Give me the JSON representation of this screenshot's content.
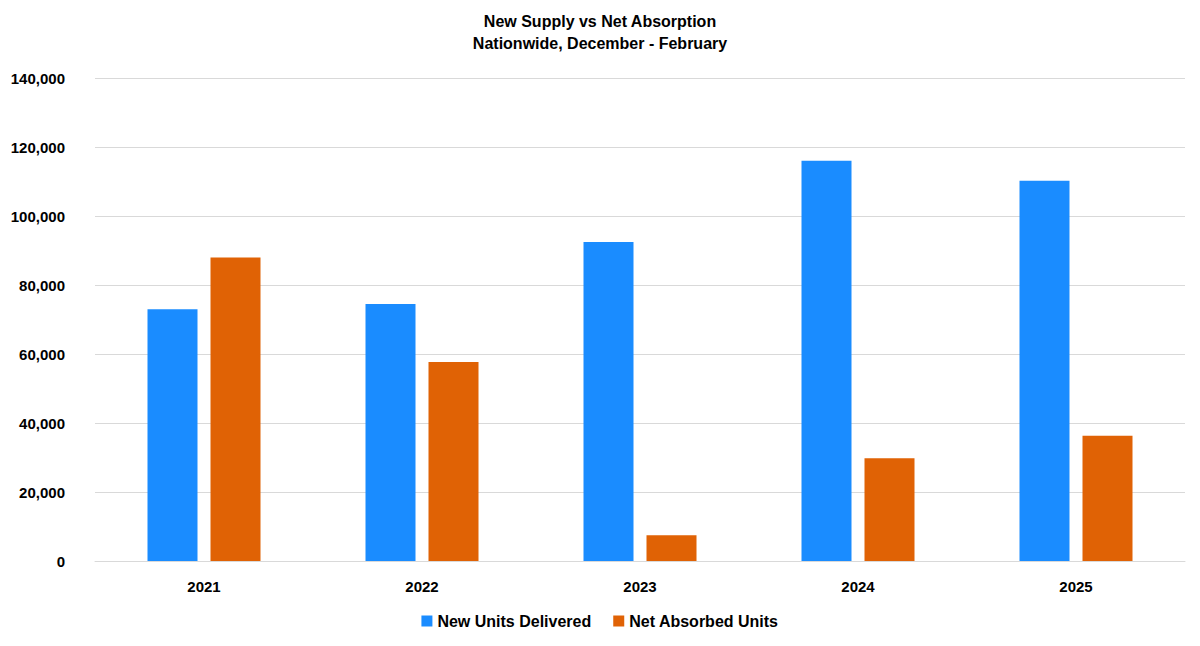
{
  "chart_data": {
    "type": "bar",
    "title": "New Supply vs Net Absorption",
    "subtitle": "Nationwide, December - February",
    "categories": [
      "2021",
      "2022",
      "2023",
      "2024",
      "2025"
    ],
    "series": [
      {
        "name": "New Units Delivered",
        "color": "#1a8cff",
        "values": [
          73000,
          74500,
          92500,
          116000,
          110200
        ]
      },
      {
        "name": "Net Absorbed Units",
        "color": "#e06205",
        "values": [
          88000,
          57700,
          7500,
          29800,
          36300
        ]
      }
    ],
    "ylim": [
      0,
      140000
    ],
    "yticks": [
      0,
      {
        "value": 20000,
        "label": "20,000"
      },
      {
        "value": 40000,
        "label": "40,000"
      },
      {
        "value": 60000,
        "label": "60,000"
      },
      {
        "value": 80000,
        "label": "80,000"
      },
      {
        "value": 100000,
        "label": "100,000"
      },
      {
        "value": 120000,
        "label": "120,000"
      },
      {
        "value": 140000,
        "label": "140,000"
      }
    ],
    "grid": true,
    "legend": "bottom"
  }
}
